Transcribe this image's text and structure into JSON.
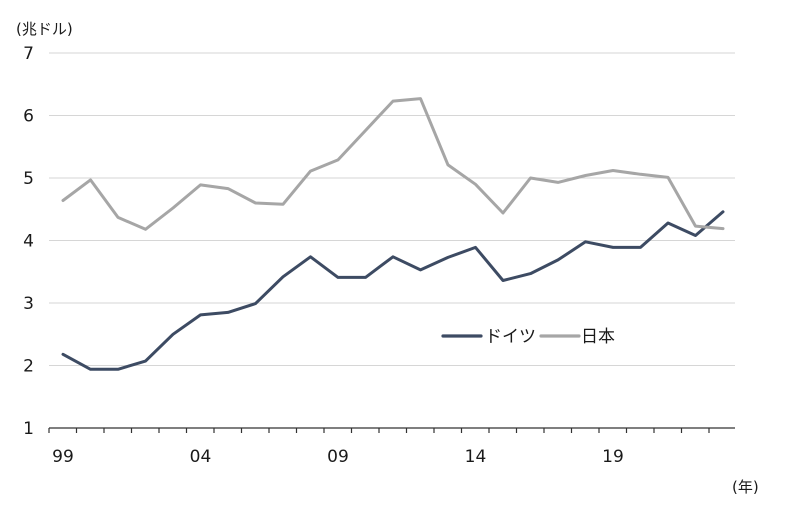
{
  "chart_data": {
    "type": "line",
    "ylabel": "(兆ドル)",
    "xlabel": "(年)",
    "ylim": [
      1,
      7
    ],
    "yticks": [
      "1",
      "2",
      "3",
      "4",
      "5",
      "6",
      "7"
    ],
    "x": [
      1999,
      2000,
      2001,
      2002,
      2003,
      2004,
      2005,
      2006,
      2007,
      2008,
      2009,
      2010,
      2011,
      2012,
      2013,
      2014,
      2015,
      2016,
      2017,
      2018,
      2019,
      2020,
      2021,
      2022,
      2023
    ],
    "xtick_labels": [
      {
        "year": 1999,
        "label": "99"
      },
      {
        "year": 2004,
        "label": "04"
      },
      {
        "year": 2009,
        "label": "09"
      },
      {
        "year": 2014,
        "label": "14"
      },
      {
        "year": 2019,
        "label": "19"
      }
    ],
    "series": [
      {
        "name": "ドイツ",
        "color": "#3d4b63",
        "values": [
          2.18,
          1.94,
          1.94,
          2.07,
          2.5,
          2.81,
          2.85,
          2.99,
          3.42,
          3.74,
          3.41,
          3.41,
          3.74,
          3.53,
          3.73,
          3.89,
          3.36,
          3.47,
          3.69,
          3.98,
          3.89,
          3.89,
          4.28,
          4.08,
          4.46
        ]
      },
      {
        "name": "日本",
        "color": "#a6a6a6",
        "values": [
          4.64,
          4.97,
          4.37,
          4.18,
          4.52,
          4.89,
          4.83,
          4.6,
          4.58,
          5.11,
          5.29,
          5.76,
          6.23,
          6.27,
          5.21,
          4.9,
          4.44,
          5.0,
          4.93,
          5.04,
          5.12,
          5.06,
          5.01,
          4.23,
          4.19
        ]
      }
    ],
    "grid": true,
    "legend_position": "center-right"
  }
}
